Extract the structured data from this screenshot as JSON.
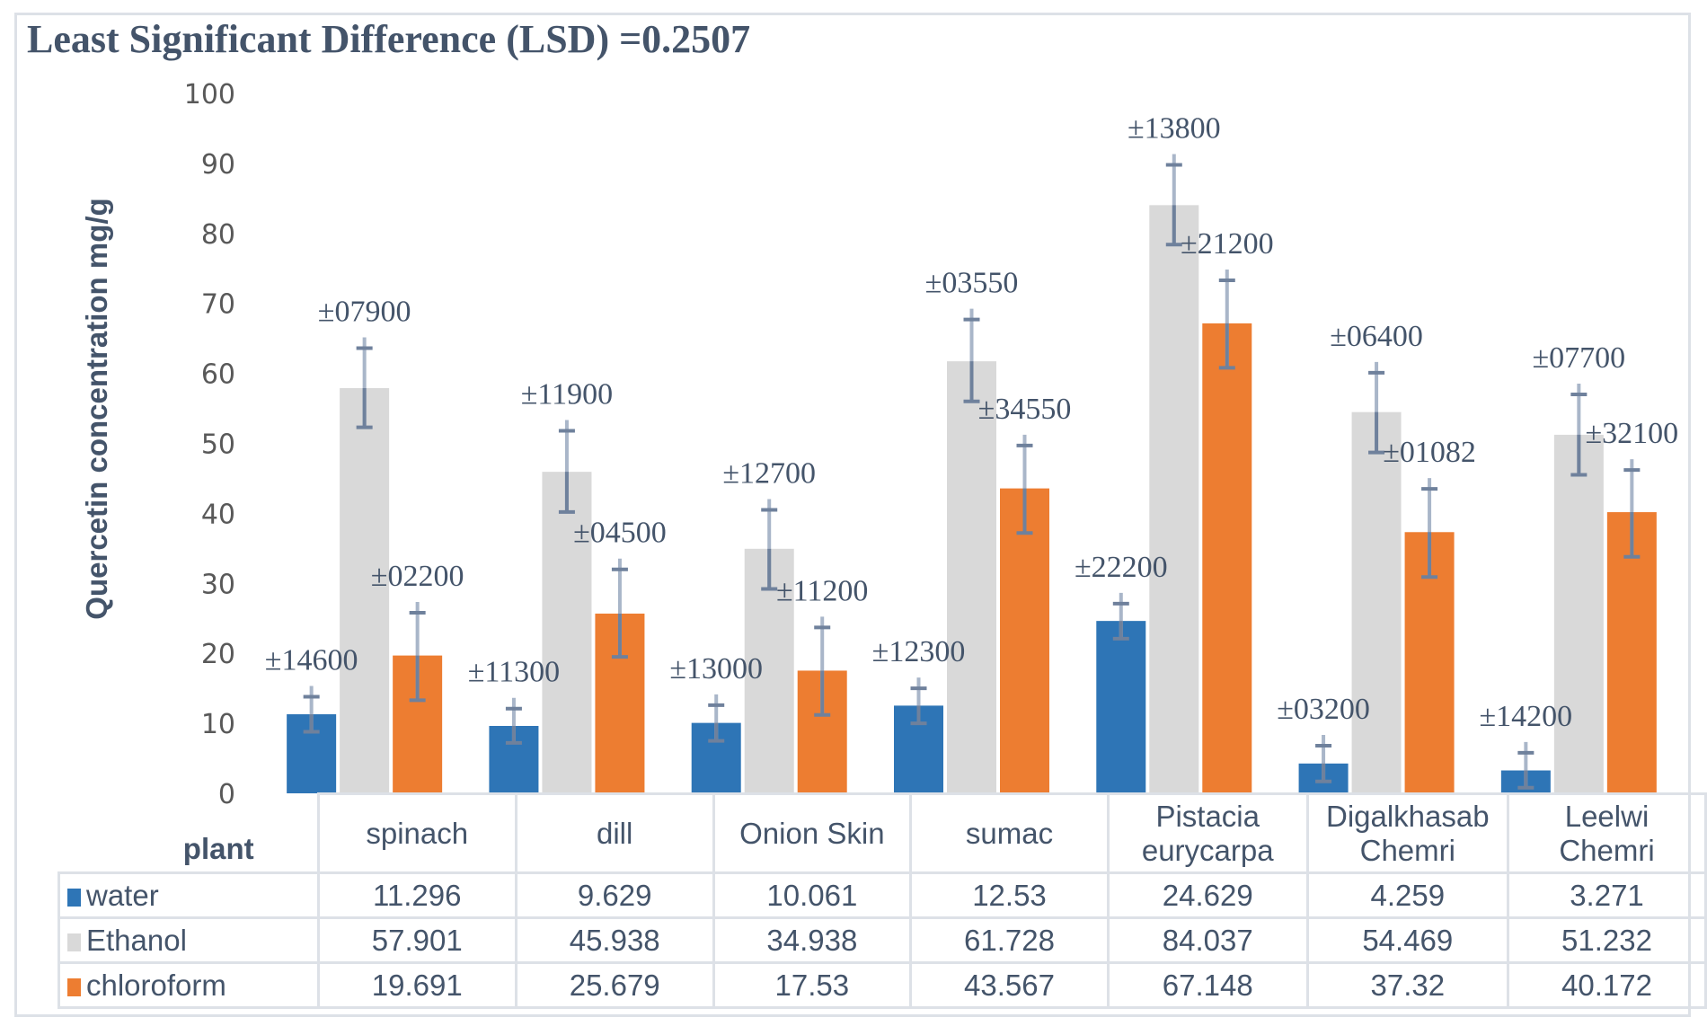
{
  "chart_data": {
    "type": "bar",
    "title": "Least Significant Difference (LSD) =0.2507",
    "xlabel": "plant",
    "ylabel": "Quercetin concentration mg/g",
    "ylim": [
      0,
      100
    ],
    "yticks": [
      0,
      10,
      20,
      30,
      40,
      50,
      60,
      70,
      80,
      90,
      100
    ],
    "grid": false,
    "legend": "data-table-bottom",
    "categories": [
      "spinach",
      "dill",
      "Onion Skin",
      "sumac",
      "Pistacia eurycarpa",
      "Digalkhasab Chemri",
      "Leelwi Chemri"
    ],
    "category_lines": [
      [
        "spinach"
      ],
      [
        "dill"
      ],
      [
        "Onion Skin"
      ],
      [
        "sumac"
      ],
      [
        "Pistacia",
        "eurycarpa"
      ],
      [
        "Digalkhasab",
        "Chemri"
      ],
      [
        "Leelwi",
        "Chemri"
      ]
    ],
    "series": [
      {
        "name": "water",
        "color": "#2e75b6",
        "values": [
          11.296,
          9.629,
          10.061,
          12.53,
          24.629,
          4.259,
          3.271
        ],
        "value_labels": [
          "11.296",
          "9.629",
          "10.061",
          "12.53",
          "24.629",
          "4.259",
          "3.271"
        ],
        "error_bar_ranges": [
          [
            8.8,
            13.8
          ],
          [
            7.2,
            12.1
          ],
          [
            7.5,
            12.6
          ],
          [
            10.0,
            15.0
          ],
          [
            22.1,
            27.1
          ],
          [
            1.7,
            6.8
          ],
          [
            0.8,
            5.8
          ]
        ],
        "error_labels": [
          "±14600",
          "±11300",
          "±13000",
          "±12300",
          "±22200",
          "±03200",
          "±14200"
        ]
      },
      {
        "name": "Ethanol",
        "color": "#d9d9d9",
        "values": [
          57.901,
          45.938,
          34.938,
          61.728,
          84.037,
          54.469,
          51.232
        ],
        "value_labels": [
          "57.901",
          "45.938",
          "34.938",
          "61.728",
          "84.037",
          "54.469",
          "51.232"
        ],
        "error_bar_ranges": [
          [
            52.3,
            63.6
          ],
          [
            40.2,
            51.8
          ],
          [
            29.2,
            40.5
          ],
          [
            56.0,
            67.7
          ],
          [
            78.4,
            89.8
          ],
          [
            48.7,
            60.1
          ],
          [
            45.5,
            57.0
          ]
        ],
        "error_labels": [
          "±07900",
          "±11900",
          "±12700",
          "±03550",
          "±13800",
          "±06400",
          "±07700"
        ]
      },
      {
        "name": "chloroform",
        "color": "#ed7d31",
        "values": [
          19.691,
          25.679,
          17.53,
          43.567,
          67.148,
          37.32,
          40.172
        ],
        "value_labels": [
          "19.691",
          "25.679",
          "17.53",
          "43.567",
          "67.148",
          "37.32",
          "40.172"
        ],
        "error_bar_ranges": [
          [
            13.3,
            25.8
          ],
          [
            19.5,
            32.0
          ],
          [
            11.2,
            23.7
          ],
          [
            37.2,
            49.7
          ],
          [
            60.8,
            73.3
          ],
          [
            30.9,
            43.5
          ],
          [
            33.8,
            46.2
          ]
        ],
        "error_labels": [
          "±02200",
          "±04500",
          "±11200",
          "±34550",
          "±21200",
          "±01082",
          "±32100"
        ]
      }
    ]
  }
}
